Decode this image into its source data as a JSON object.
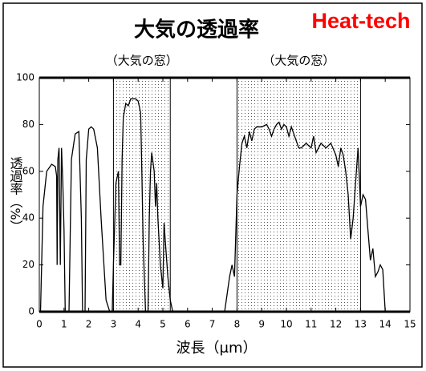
{
  "chart_data": {
    "type": "line",
    "title": "大気の透過率",
    "brand": "Heat-tech",
    "xlabel": "波長（μm）",
    "ylabel": "透過率（%）",
    "xlim": [
      0,
      15
    ],
    "ylim": [
      0,
      100
    ],
    "xticks": [
      0,
      1,
      2,
      3,
      4,
      5,
      6,
      7,
      8,
      9,
      10,
      11,
      12,
      13,
      14,
      15
    ],
    "yticks": [
      0,
      20,
      40,
      60,
      80,
      100
    ],
    "color": "#000000",
    "windows": [
      {
        "label": "（大気の窓）",
        "xmin": 3,
        "xmax": 5.3
      },
      {
        "label": "（大気の窓）",
        "xmin": 8,
        "xmax": 13
      }
    ],
    "x": [
      0.05,
      0.15,
      0.3,
      0.5,
      0.65,
      0.7,
      0.72,
      0.75,
      0.8,
      0.85,
      0.9,
      0.95,
      1.0,
      1.05,
      1.2,
      1.3,
      1.45,
      1.6,
      1.7,
      1.75,
      1.85,
      1.9,
      2.0,
      2.1,
      2.2,
      2.35,
      2.5,
      2.7,
      2.85,
      2.95,
      3.0,
      3.1,
      3.2,
      3.25,
      3.3,
      3.35,
      3.4,
      3.5,
      3.6,
      3.7,
      3.9,
      4.0,
      4.1,
      4.15,
      4.2,
      4.3,
      4.4,
      4.45,
      4.5,
      4.55,
      4.65,
      4.7,
      4.75,
      4.8,
      4.9,
      5.0,
      5.05,
      5.1,
      5.2,
      5.3,
      5.4,
      7.5,
      7.7,
      7.8,
      7.9,
      8.0,
      8.1,
      8.2,
      8.3,
      8.4,
      8.5,
      8.6,
      8.7,
      8.8,
      9.0,
      9.2,
      9.3,
      9.4,
      9.5,
      9.6,
      9.7,
      9.8,
      9.9,
      10.0,
      10.1,
      10.2,
      10.3,
      10.5,
      10.6,
      10.8,
      11.0,
      11.1,
      11.2,
      11.4,
      11.6,
      11.8,
      12.0,
      12.1,
      12.2,
      12.3,
      12.4,
      12.5,
      12.6,
      12.7,
      12.8,
      12.9,
      13.0,
      13.1,
      13.2,
      13.3,
      13.4,
      13.5,
      13.6,
      13.7,
      13.8,
      13.9,
      14.0
    ],
    "values": [
      0,
      45,
      60,
      63,
      62,
      58,
      20,
      65,
      70,
      20,
      70,
      55,
      35,
      0,
      0,
      65,
      76,
      77,
      40,
      0,
      0,
      65,
      78,
      79,
      78,
      70,
      40,
      5,
      0,
      0,
      20,
      55,
      60,
      20,
      20,
      65,
      83,
      89,
      88,
      91,
      91,
      90,
      85,
      60,
      30,
      0,
      0,
      40,
      60,
      68,
      60,
      45,
      55,
      40,
      20,
      10,
      38,
      30,
      15,
      5,
      0,
      0,
      15,
      20,
      15,
      50,
      62,
      72,
      75,
      70,
      77,
      73,
      78,
      79,
      79,
      80,
      78,
      75,
      78,
      80,
      81,
      78,
      80,
      79,
      75,
      79,
      76,
      70,
      70,
      72,
      70,
      75,
      68,
      72,
      70,
      72,
      67,
      62,
      70,
      67,
      60,
      50,
      31,
      40,
      55,
      70,
      45,
      50,
      48,
      35,
      22,
      27,
      15,
      17,
      20,
      18,
      0
    ]
  }
}
